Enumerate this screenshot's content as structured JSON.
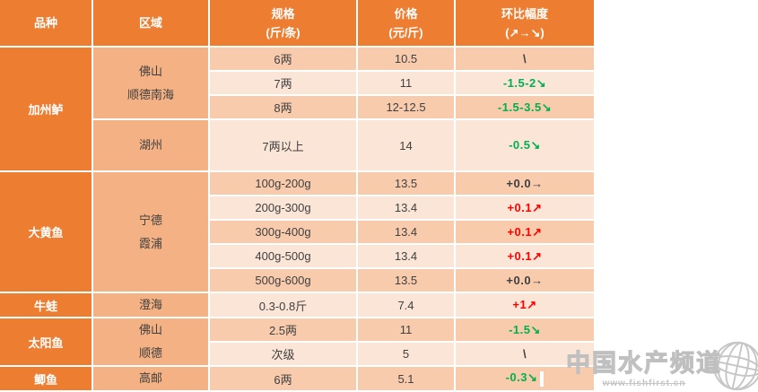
{
  "colors": {
    "header_bg": "#ED7D31",
    "species_bg": "#ED7D31",
    "region_bg": "#F4B183",
    "stripe_dark": "#F8CBAD",
    "stripe_light": "#FBE5D6",
    "trend_up": "#FF0000",
    "trend_down": "#00B050",
    "trend_flat": "#404040",
    "watermark_gray": "#C6C6C6"
  },
  "header": {
    "col_species": "品种",
    "col_region": "区域",
    "col_spec_1": "规格",
    "col_spec_2": "(斤/条)",
    "col_price_1": "价格",
    "col_price_2": "(元/斤)",
    "col_change_1": "环比幅度",
    "col_change_2": "(↗→↘)"
  },
  "sections": [
    {
      "name": "加州鲈",
      "groups": [
        {
          "region": [
            "佛山",
            "顺德南海"
          ],
          "rows": [
            {
              "spec": "6两",
              "price": "10.5",
              "change": "\\",
              "trend": "flat"
            },
            {
              "spec": "7两",
              "price": "11",
              "change": "-1.5-2↘",
              "trend": "down"
            },
            {
              "spec": "8两",
              "price": "12-12.5",
              "change": "-1.5-3.5↘",
              "trend": "down"
            }
          ]
        },
        {
          "region": [
            "湖州"
          ],
          "rows": [
            {
              "spec": "7两以上",
              "price": "14",
              "change": "-0.5↘",
              "trend": "down",
              "tall": true
            }
          ]
        }
      ]
    },
    {
      "name": "大黄鱼",
      "groups": [
        {
          "region": [
            "宁德",
            "霞浦"
          ],
          "rows": [
            {
              "spec": "100g-200g",
              "price": "13.5",
              "change": "+0.0→",
              "trend": "flat"
            },
            {
              "spec": "200g-300g",
              "price": "13.4",
              "change": "+0.1↗",
              "trend": "up"
            },
            {
              "spec": "300g-400g",
              "price": "13.4",
              "change": "+0.1↗",
              "trend": "up"
            },
            {
              "spec": "400g-500g",
              "price": "13.4",
              "change": "+0.1↗",
              "trend": "up"
            },
            {
              "spec": "500g-600g",
              "price": "13.5",
              "change": "+0.0→",
              "trend": "flat"
            }
          ]
        }
      ]
    },
    {
      "name": "牛蛙",
      "groups": [
        {
          "region": [
            "澄海"
          ],
          "rows": [
            {
              "spec": "0.3-0.8斤",
              "price": "7.4",
              "change": "+1↗",
              "trend": "up"
            }
          ]
        }
      ]
    },
    {
      "name": "太阳鱼",
      "groups": [
        {
          "region": [
            "佛山",
            "顺德"
          ],
          "rows": [
            {
              "spec": "2.5两",
              "price": "11",
              "change": "-1.5↘",
              "trend": "down"
            },
            {
              "spec": "次级",
              "price": "5",
              "change": "\\",
              "trend": "flat"
            }
          ]
        }
      ]
    },
    {
      "name": "鲫鱼",
      "groups": [
        {
          "region": [
            "高邮"
          ],
          "rows": [
            {
              "spec": "6两",
              "price": "5.1",
              "change": "-0.3↘",
              "trend": "down",
              "cursor": true
            }
          ]
        }
      ]
    }
  ],
  "watermark": {
    "title": "中国水产频道",
    "url": "www.fishfirst.cn"
  }
}
